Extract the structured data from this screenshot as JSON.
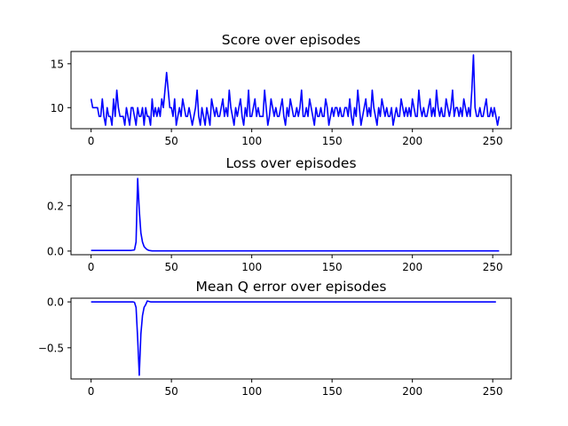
{
  "chart_data": [
    {
      "type": "line",
      "title": "Score over episodes",
      "xlabel": "",
      "ylabel": "",
      "xlim": [
        -12.5,
        261.5
      ],
      "ylim": [
        7.6,
        16.4
      ],
      "xticks": [
        0,
        50,
        100,
        150,
        200,
        250
      ],
      "yticks": [
        10,
        15
      ],
      "color": "#0000ff",
      "series": [
        {
          "values": [
            11,
            10,
            10,
            10,
            10,
            9,
            9,
            11,
            9,
            8,
            10,
            9,
            9,
            8,
            11,
            9,
            12,
            10,
            9,
            9,
            9,
            8,
            10,
            9,
            8,
            10,
            10,
            9,
            8,
            10,
            9,
            9,
            10,
            8,
            10,
            9,
            9,
            8,
            11,
            9,
            10,
            9,
            10,
            9,
            11,
            10,
            12,
            14,
            12,
            10,
            10,
            9,
            11,
            8,
            9,
            10,
            9,
            11,
            10,
            9,
            9,
            10,
            9,
            8,
            9,
            10,
            12,
            9,
            8,
            10,
            9,
            8,
            10,
            9,
            8,
            11,
            10,
            9,
            10,
            9,
            9,
            10,
            11,
            9,
            10,
            9,
            12,
            10,
            9,
            8,
            10,
            9,
            10,
            11,
            9,
            8,
            10,
            9,
            12,
            9,
            9,
            10,
            11,
            9,
            10,
            9,
            9,
            9,
            12,
            10,
            8,
            9,
            11,
            10,
            9,
            10,
            9,
            9,
            10,
            11,
            9,
            8,
            10,
            9,
            11,
            10,
            9,
            9,
            10,
            9,
            10,
            12,
            9,
            9,
            10,
            9,
            11,
            10,
            9,
            8,
            10,
            9,
            9,
            10,
            9,
            9,
            11,
            10,
            8,
            9,
            10,
            9,
            10,
            10,
            9,
            10,
            9,
            9,
            10,
            10,
            9,
            11,
            9,
            8,
            10,
            9,
            12,
            10,
            8,
            9,
            10,
            11,
            9,
            10,
            9,
            12,
            10,
            9,
            8,
            10,
            9,
            11,
            10,
            9,
            10,
            9,
            9,
            10,
            8,
            9,
            10,
            9,
            9,
            11,
            10,
            9,
            10,
            9,
            10,
            9,
            11,
            10,
            9,
            9,
            12,
            10,
            9,
            10,
            9,
            9,
            10,
            11,
            9,
            10,
            9,
            12,
            10,
            9,
            10,
            9,
            9,
            11,
            10,
            9,
            10,
            12,
            9,
            10,
            10,
            9,
            10,
            9,
            11,
            10,
            9,
            10,
            9,
            12,
            16,
            10,
            9,
            9,
            10,
            9,
            9,
            10,
            11,
            9,
            9,
            10,
            9,
            10,
            9,
            8,
            9
          ]
        }
      ]
    },
    {
      "type": "line",
      "title": "Loss over episodes",
      "xlabel": "",
      "ylabel": "",
      "xlim": [
        -12.5,
        261.5
      ],
      "ylim": [
        -0.016,
        0.336
      ],
      "xticks": [
        0,
        50,
        100,
        150,
        200,
        250
      ],
      "yticks": [
        0.0,
        0.2
      ],
      "ytick_labels": [
        "0.0",
        "0.2"
      ],
      "color": "#0000ff",
      "series": [
        {
          "values": [
            0.003,
            0.003,
            0.003,
            0.003,
            0.003,
            0.003,
            0.003,
            0.003,
            0.003,
            0.003,
            0.003,
            0.003,
            0.003,
            0.003,
            0.003,
            0.003,
            0.003,
            0.003,
            0.003,
            0.003,
            0.003,
            0.003,
            0.003,
            0.003,
            0.003,
            0.003,
            0.004,
            0.005,
            0.04,
            0.32,
            0.18,
            0.08,
            0.04,
            0.02,
            0.012,
            0.006,
            0.003,
            0.002,
            0.001,
            0.001,
            0.001,
            0.001,
            0.001,
            0.001,
            0.001,
            0.001,
            0.001,
            0.001,
            0.001,
            0.001,
            0.001,
            0.001,
            0.001,
            0.001,
            0.001,
            0.001,
            0.001,
            0.001,
            0.001,
            0.001,
            0.001,
            0.001,
            0.001,
            0.001,
            0.001,
            0.001,
            0.001,
            0.001,
            0.001,
            0.001,
            0.001,
            0.001,
            0.001,
            0.001,
            0.001,
            0.001,
            0.001,
            0.001,
            0.001,
            0.001,
            0.001,
            0.001,
            0.001,
            0.001,
            0.001,
            0.001,
            0.001,
            0.001,
            0.001,
            0.001,
            0.001,
            0.001,
            0.001,
            0.001,
            0.001,
            0.001,
            0.001,
            0.001,
            0.001,
            0.001,
            0.001,
            0.001,
            0.001,
            0.001,
            0.001,
            0.001,
            0.001,
            0.001,
            0.001,
            0.001,
            0.001,
            0.001,
            0.001,
            0.001,
            0.001,
            0.001,
            0.001,
            0.001,
            0.001,
            0.001,
            0.001,
            0.001,
            0.001,
            0.001,
            0.001,
            0.001,
            0.001,
            0.001,
            0.001,
            0.001,
            0.001,
            0.001,
            0.001,
            0.001,
            0.001,
            0.001,
            0.001,
            0.001,
            0.001,
            0.001,
            0.001,
            0.001,
            0.001,
            0.001,
            0.001,
            0.001,
            0.001,
            0.001,
            0.001,
            0.001,
            0.001,
            0.001,
            0.001,
            0.001,
            0.001,
            0.001,
            0.001,
            0.001,
            0.001,
            0.001,
            0.001,
            0.001,
            0.001,
            0.001,
            0.001,
            0.001,
            0.001,
            0.001,
            0.001,
            0.001,
            0.001,
            0.001,
            0.001,
            0.001,
            0.001,
            0.001,
            0.001,
            0.001,
            0.001,
            0.001,
            0.001,
            0.001,
            0.001,
            0.001,
            0.001,
            0.001,
            0.001,
            0.001,
            0.001,
            0.001,
            0.001,
            0.001,
            0.001,
            0.001,
            0.001,
            0.001,
            0.001,
            0.001,
            0.001,
            0.001,
            0.001,
            0.001,
            0.001,
            0.001,
            0.001,
            0.001,
            0.001,
            0.001,
            0.001,
            0.001,
            0.001,
            0.001,
            0.001,
            0.001,
            0.001,
            0.001,
            0.001,
            0.001,
            0.001,
            0.001,
            0.001,
            0.001,
            0.001,
            0.001,
            0.001,
            0.001,
            0.001,
            0.001,
            0.001,
            0.001,
            0.001,
            0.001,
            0.001,
            0.001,
            0.001,
            0.001,
            0.001,
            0.001,
            0.001,
            0.001,
            0.001,
            0.001,
            0.001,
            0.001,
            0.001,
            0.001,
            0.001,
            0.001,
            0.001,
            0.001,
            0.001,
            0.001,
            0.001,
            0.001,
            0.001
          ]
        }
      ]
    },
    {
      "type": "line",
      "title": "Mean Q error over episodes",
      "xlabel": "",
      "ylabel": "",
      "xlim": [
        -12.5,
        261.5
      ],
      "ylim": [
        -0.84,
        0.04
      ],
      "xticks": [
        0,
        50,
        100,
        150,
        200,
        250
      ],
      "yticks": [
        -0.5,
        0.0
      ],
      "ytick_labels": [
        "−0.5",
        "0.0"
      ],
      "color": "#0000ff",
      "series": [
        {
          "values": [
            0,
            0,
            0,
            0,
            0,
            0,
            0,
            0,
            0,
            0,
            0,
            0,
            0,
            0,
            0,
            0,
            0,
            0,
            0,
            0,
            0,
            0,
            0,
            0,
            0,
            0,
            0,
            -0.005,
            -0.06,
            -0.4,
            -0.8,
            -0.35,
            -0.15,
            -0.06,
            -0.03,
            0.01,
            0.005,
            0,
            0,
            0,
            0,
            0,
            0,
            0,
            0,
            0,
            0,
            0,
            0,
            0,
            0,
            0,
            0,
            0,
            0,
            0,
            0,
            0,
            0,
            0,
            0,
            0,
            0,
            0,
            0,
            0,
            0,
            0,
            0,
            0,
            0,
            0,
            0,
            0,
            0,
            0,
            0,
            0,
            0,
            0,
            0,
            0,
            0,
            0,
            0,
            0,
            0,
            0,
            0,
            0,
            0,
            0,
            0,
            0,
            0,
            0,
            0,
            0,
            0,
            0,
            0,
            0,
            0,
            0,
            0,
            0,
            0,
            0,
            0,
            0,
            0,
            0,
            0,
            0,
            0,
            0,
            0,
            0,
            0,
            0,
            0,
            0,
            0,
            0,
            0,
            0,
            0,
            0,
            0,
            0,
            0,
            0,
            0,
            0,
            0,
            0,
            0,
            0,
            0,
            0,
            0,
            0,
            0,
            0,
            0,
            0,
            0,
            0,
            0,
            0,
            0,
            0,
            0,
            0,
            0,
            0,
            0,
            0,
            0,
            0,
            0,
            0,
            0,
            0,
            0,
            0,
            0,
            0,
            0,
            0,
            0,
            0,
            0,
            0,
            0,
            0,
            0,
            0,
            0,
            0,
            0,
            0,
            0,
            0,
            0,
            0,
            0,
            0,
            0,
            0,
            0,
            0,
            0,
            0,
            0,
            0,
            0,
            0,
            0,
            0,
            0,
            0,
            0,
            0,
            0,
            0,
            0,
            0,
            0,
            0,
            0,
            0,
            0,
            0,
            0,
            0,
            0,
            0,
            0,
            0,
            0,
            0,
            0,
            0,
            0,
            0,
            0,
            0,
            0,
            0,
            0,
            0,
            0,
            0,
            0,
            0,
            0,
            0,
            0,
            0,
            0,
            0,
            0,
            0,
            0,
            0,
            0,
            0,
            0,
            0,
            0,
            0,
            0
          ]
        }
      ]
    }
  ]
}
